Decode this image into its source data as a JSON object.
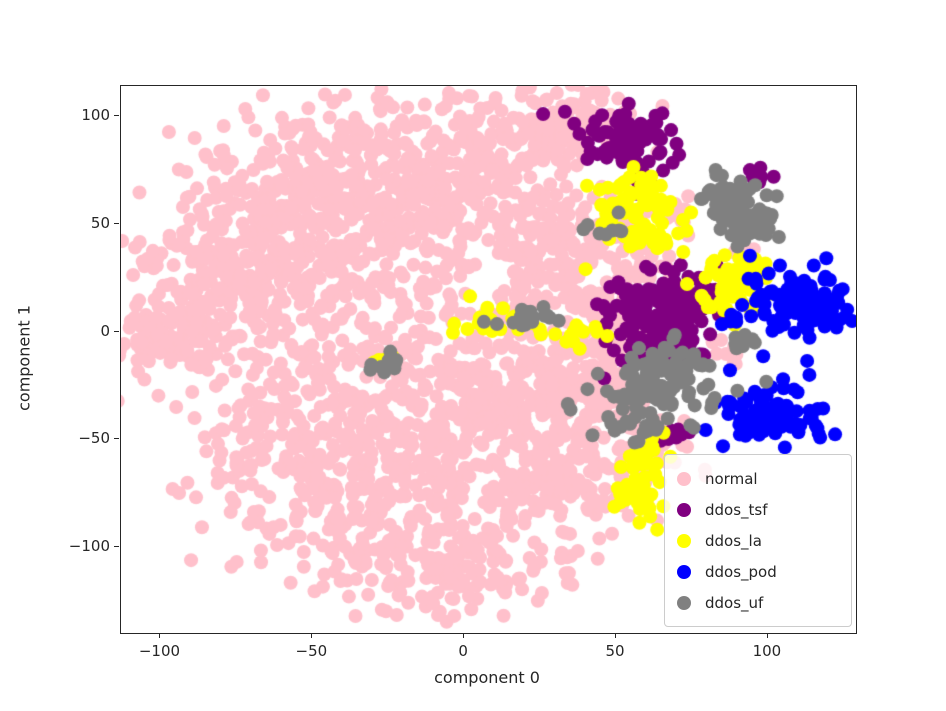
{
  "figure": {
    "background": "#ffffff"
  },
  "chart_data": {
    "type": "scatter",
    "title": "",
    "xlabel": "component 0",
    "ylabel": "component 1",
    "xlim": [
      -113,
      129
    ],
    "ylim": [
      -140,
      114
    ],
    "xticks": [
      -100,
      -50,
      0,
      50,
      100
    ],
    "yticks": [
      -100,
      -50,
      0,
      50,
      100
    ],
    "grid": false,
    "legend_position": "lower right",
    "marker_radius_px": 7,
    "series": [
      {
        "name": "normal",
        "color": "#FFC0CB",
        "clusters": [
          [
            -20,
            82,
            30,
            14,
            260
          ],
          [
            -60,
            60,
            22,
            16,
            200
          ],
          [
            -80,
            25,
            18,
            16,
            170
          ],
          [
            -95,
            -2,
            12,
            10,
            110
          ],
          [
            -45,
            25,
            22,
            16,
            190
          ],
          [
            0,
            55,
            22,
            15,
            170
          ],
          [
            22,
            92,
            14,
            9,
            90
          ],
          [
            -10,
            -18,
            28,
            16,
            220
          ],
          [
            -48,
            -45,
            24,
            15,
            190
          ],
          [
            0,
            -60,
            28,
            15,
            200
          ],
          [
            -30,
            -88,
            26,
            13,
            170
          ],
          [
            -8,
            -112,
            22,
            10,
            140
          ],
          [
            25,
            -35,
            18,
            13,
            140
          ],
          [
            35,
            -70,
            13,
            10,
            90
          ],
          [
            45,
            -15,
            10,
            9,
            70
          ],
          [
            28,
            22,
            13,
            9,
            80
          ],
          [
            40,
            100,
            9,
            6,
            45
          ],
          [
            30,
            45,
            10,
            9,
            70
          ],
          [
            48,
            12,
            6,
            8,
            40
          ],
          [
            55,
            45,
            6,
            5,
            25
          ],
          [
            62,
            -52,
            7,
            5,
            30
          ],
          [
            -73,
            -62,
            3,
            3,
            10
          ],
          [
            88,
            -8,
            4,
            4,
            12
          ],
          [
            90,
            42,
            3,
            3,
            8
          ],
          [
            60,
            30,
            5,
            4,
            15
          ],
          [
            72,
            55,
            4,
            4,
            10
          ]
        ]
      },
      {
        "name": "ddos_tsf",
        "color": "#800080",
        "clusters": [
          [
            53,
            90,
            8,
            7,
            90
          ],
          [
            63,
            5,
            9,
            10,
            160
          ],
          [
            75,
            18,
            5,
            5,
            30
          ],
          [
            97,
            73,
            2.5,
            2.5,
            8
          ],
          [
            68,
            -48,
            3,
            3,
            8
          ],
          [
            60,
            70,
            3,
            3,
            8
          ]
        ]
      },
      {
        "name": "ddos_la",
        "color": "#FFFF00",
        "clusters": [
          [
            58,
            58,
            6,
            9,
            75
          ],
          [
            63,
            43,
            4,
            3,
            12
          ],
          [
            88,
            20,
            6,
            8,
            60
          ],
          [
            95,
            32,
            3,
            3,
            10
          ],
          [
            15,
            4,
            13,
            4,
            26
          ],
          [
            -25,
            -15,
            3,
            2.5,
            8
          ],
          [
            60,
            -63,
            5,
            7,
            30
          ],
          [
            57,
            -79,
            5,
            5,
            25
          ],
          [
            40,
            -2,
            4,
            3,
            10
          ]
        ]
      },
      {
        "name": "ddos_pod",
        "color": "#0000FF",
        "clusters": [
          [
            108,
            15,
            8,
            8,
            90
          ],
          [
            118,
            8,
            4,
            5,
            20
          ],
          [
            100,
            -37,
            9,
            7,
            95
          ],
          [
            88,
            8,
            2.5,
            2.5,
            6
          ]
        ]
      },
      {
        "name": "ddos_uf",
        "color": "#808080",
        "clusters": [
          [
            86,
            62,
            5,
            6,
            50
          ],
          [
            94,
            50,
            5,
            5,
            35
          ],
          [
            65,
            -25,
            10,
            8,
            100
          ],
          [
            55,
            -45,
            5,
            4,
            15
          ],
          [
            75,
            -12,
            4,
            4,
            12
          ],
          [
            22,
            6,
            7,
            3,
            18
          ],
          [
            -26,
            -16,
            3,
            2.5,
            10
          ],
          [
            92,
            -6,
            3,
            3,
            10
          ],
          [
            46,
            48,
            3,
            3,
            8
          ]
        ]
      }
    ]
  },
  "legend": {
    "entries": [
      {
        "label": "normal",
        "color": "#FFC0CB"
      },
      {
        "label": "ddos_tsf",
        "color": "#800080"
      },
      {
        "label": "ddos_la",
        "color": "#FFFF00"
      },
      {
        "label": "ddos_pod",
        "color": "#0000FF"
      },
      {
        "label": "ddos_uf",
        "color": "#808080"
      }
    ]
  }
}
